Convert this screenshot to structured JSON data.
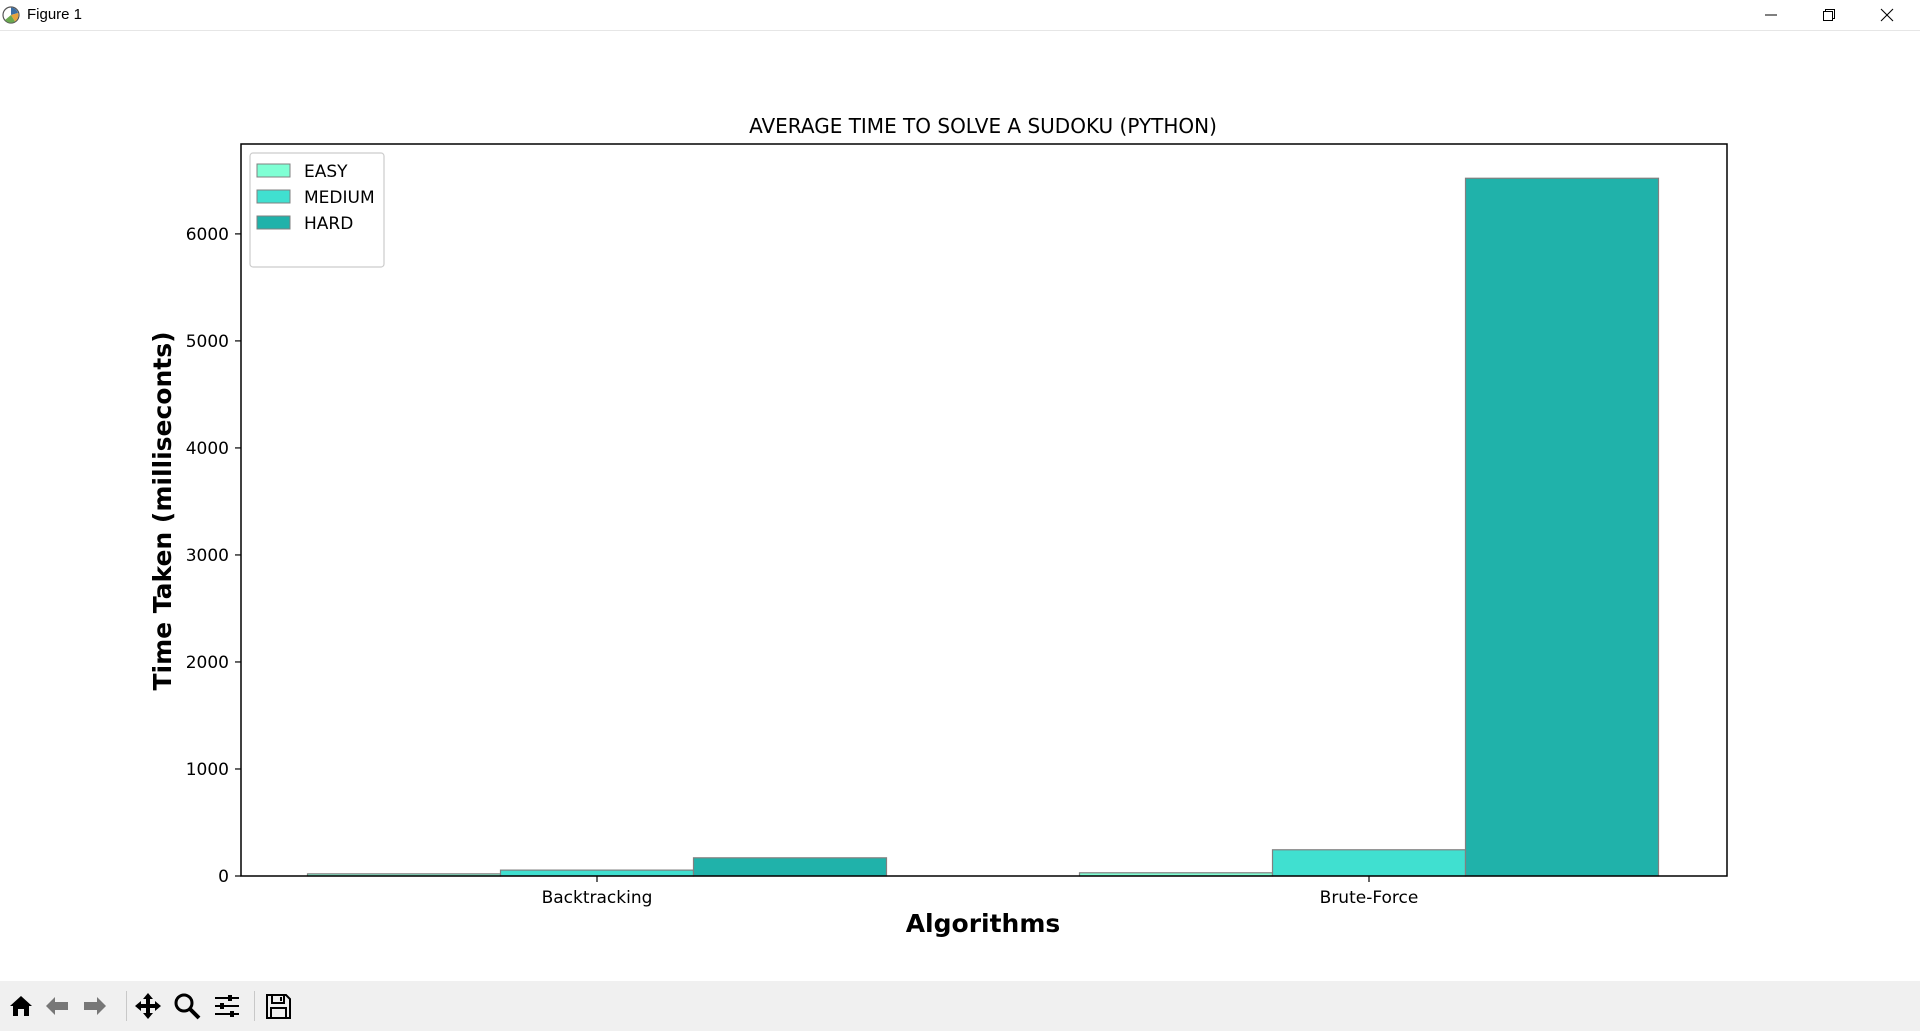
{
  "window": {
    "title": "Figure 1",
    "icons": [
      "app-icon",
      "minimize-icon",
      "restore-icon",
      "close-icon"
    ]
  },
  "toolbar": {
    "buttons": [
      "home-icon",
      "back-arrow-icon",
      "forward-arrow-icon",
      "pan-icon",
      "zoom-icon",
      "configure-subplots-icon",
      "save-icon"
    ]
  },
  "chart_data": {
    "type": "bar",
    "title": "AVERAGE TIME TO SOLVE A SUDOKU (PYTHON)",
    "xlabel": "Algorithms",
    "ylabel": "Time Taken (milliseconts)",
    "categories": [
      "Backtracking",
      "Brute-Force"
    ],
    "series": [
      {
        "name": "EASY",
        "color": "#7fffd4",
        "values": [
          20,
          30
        ]
      },
      {
        "name": "MEDIUM",
        "color": "#40e0d0",
        "values": [
          55,
          245
        ]
      },
      {
        "name": "HARD",
        "color": "#20b2aa",
        "values": [
          170,
          6520
        ]
      }
    ],
    "yticks": [
      0,
      1000,
      2000,
      3000,
      4000,
      5000,
      6000
    ],
    "ylim": [
      0,
      6840
    ],
    "legend": "top-left",
    "grid": false
  }
}
